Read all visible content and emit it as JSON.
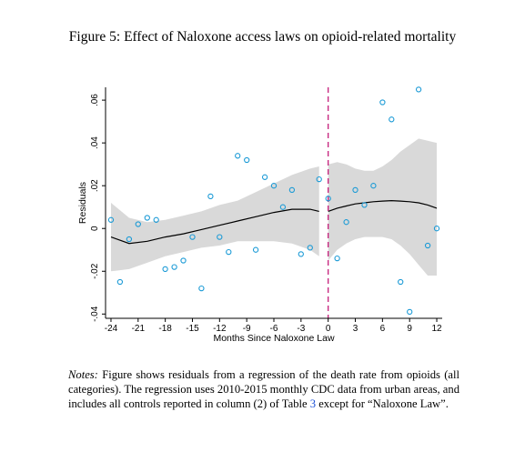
{
  "figure": {
    "title": "Figure 5: Effect of Naloxone access laws on opioid-related mortality"
  },
  "notes": {
    "label": "Notes:",
    "text_before": "Figure shows residuals from a regression of the death rate from opioids (all categories). The regression uses 2010-2015 monthly CDC data from urban areas, and includes all controls reported in column (2) of Table",
    "table_ref": "3",
    "text_after": "except for “Naloxone Law”."
  },
  "chart_data": {
    "type": "scatter",
    "xlabel": "Months Since Naloxone Law",
    "ylabel": "Residuals",
    "xlim": [
      -24.6,
      12.6
    ],
    "ylim": [
      -0.042,
      0.066
    ],
    "xticks": [
      -24,
      -21,
      -18,
      -15,
      -12,
      -9,
      -6,
      -3,
      0,
      3,
      6,
      9,
      12
    ],
    "xtick_labels": [
      "-24",
      "-21",
      "-18",
      "-15",
      "-12",
      "-9",
      "-6",
      "-3",
      "0",
      "3",
      "6",
      "9",
      "12"
    ],
    "yticks": [
      -0.04,
      -0.02,
      0,
      0.02,
      0.04,
      0.06
    ],
    "ytick_labels": [
      "-.04",
      "-.02",
      "0",
      ".02",
      ".04",
      ".06"
    ],
    "vline_x": 0,
    "colors": {
      "points": "#1a9ad6",
      "vline": "#c41e7a",
      "band": "#d9d9d9",
      "fit": "#000000"
    },
    "points": {
      "x": [
        -24,
        -23,
        -22,
        -21,
        -20,
        -19,
        -18,
        -17,
        -16,
        -15,
        -14,
        -13,
        -12,
        -11,
        -10,
        -9,
        -8,
        -7,
        -6,
        -5,
        -4,
        -3,
        -2,
        -1,
        0,
        1,
        2,
        3,
        4,
        5,
        6,
        7,
        8,
        9,
        10,
        11,
        12
      ],
      "y": [
        0.004,
        -0.025,
        -0.005,
        0.002,
        0.005,
        0.004,
        -0.019,
        -0.018,
        -0.015,
        -0.004,
        -0.028,
        0.015,
        -0.004,
        -0.011,
        0.034,
        0.032,
        -0.01,
        0.024,
        0.02,
        0.01,
        0.018,
        -0.012,
        -0.009,
        0.023,
        0.014,
        -0.014,
        0.003,
        0.018,
        0.011,
        0.02,
        0.059,
        0.051,
        -0.025,
        -0.039,
        0.065,
        -0.008,
        0.0
      ]
    },
    "fit_left": {
      "x": [
        -24,
        -22,
        -20,
        -18,
        -16,
        -14,
        -12,
        -10,
        -8,
        -6,
        -4,
        -2,
        -1
      ],
      "y": [
        -0.004,
        -0.007,
        -0.006,
        -0.004,
        -0.0025,
        -0.0005,
        0.0015,
        0.0035,
        0.0055,
        0.0075,
        0.009,
        0.009,
        0.008
      ]
    },
    "band_left": {
      "x": [
        -24,
        -22,
        -20,
        -18,
        -16,
        -14,
        -12,
        -10,
        -8,
        -6,
        -4,
        -2,
        -1
      ],
      "upper": [
        0.012,
        0.005,
        0.003,
        0.004,
        0.006,
        0.008,
        0.011,
        0.013,
        0.017,
        0.021,
        0.025,
        0.028,
        0.029
      ],
      "lower": [
        -0.02,
        -0.019,
        -0.016,
        -0.013,
        -0.011,
        -0.009,
        -0.008,
        -0.006,
        -0.006,
        -0.006,
        -0.007,
        -0.01,
        -0.013
      ]
    },
    "fit_right": {
      "x": [
        0,
        1,
        2,
        3,
        4,
        5,
        6,
        7,
        8,
        9,
        10,
        11,
        12
      ],
      "y": [
        0.008,
        0.0095,
        0.0105,
        0.0115,
        0.012,
        0.0125,
        0.0128,
        0.013,
        0.0128,
        0.0125,
        0.012,
        0.011,
        0.0095
      ]
    },
    "band_right": {
      "x": [
        0,
        1,
        2,
        3,
        4,
        5,
        6,
        7,
        8,
        9,
        10,
        11,
        12
      ],
      "upper": [
        0.03,
        0.031,
        0.03,
        0.028,
        0.027,
        0.027,
        0.029,
        0.032,
        0.036,
        0.039,
        0.042,
        0.041,
        0.04
      ],
      "lower": [
        -0.015,
        -0.01,
        -0.007,
        -0.005,
        -0.004,
        -0.004,
        -0.004,
        -0.005,
        -0.008,
        -0.012,
        -0.017,
        -0.022,
        -0.022
      ]
    }
  }
}
